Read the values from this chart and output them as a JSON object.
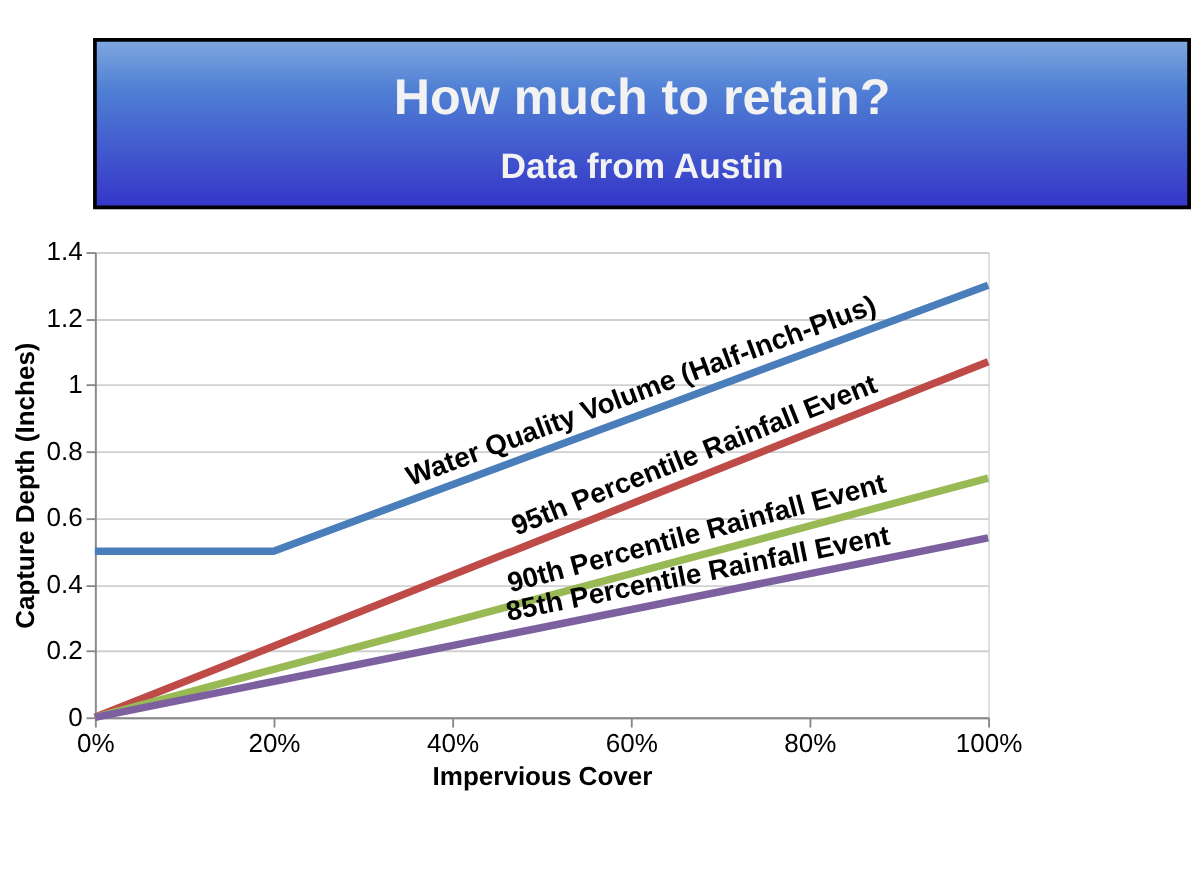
{
  "chart_data": {
    "type": "line",
    "title": "How much to retain?",
    "subtitle": "Data from Austin",
    "xlabel": "Impervious Cover",
    "ylabel": "Capture Depth (Inches)",
    "xlim": [
      0,
      100
    ],
    "xticks": [
      {
        "value": 0,
        "label": "0%"
      },
      {
        "value": 20,
        "label": "20%"
      },
      {
        "value": 40,
        "label": "40%"
      },
      {
        "value": 60,
        "label": "60%"
      },
      {
        "value": 80,
        "label": "80%"
      },
      {
        "value": 100,
        "label": "100%"
      }
    ],
    "ylim": [
      0,
      1.4
    ],
    "yticks": [
      0,
      0.2,
      0.4,
      0.6,
      0.8,
      1,
      1.2,
      1.4
    ],
    "grid": "y",
    "legend": false,
    "marker": "none",
    "line_style": "solid",
    "series": [
      {
        "name": "Water Quality Volume (Half-Inch-Plus)",
        "color": "#4a7ebb",
        "x": [
          0,
          20,
          100
        ],
        "values": [
          0.5,
          0.5,
          1.3
        ]
      },
      {
        "name": "95th Percentile Rainfall Event",
        "color": "#be4b48",
        "x": [
          0,
          100
        ],
        "values": [
          0,
          1.07
        ]
      },
      {
        "name": "90th Percentile Rainfall Event",
        "color": "#98b954",
        "x": [
          0,
          100
        ],
        "values": [
          0,
          0.72
        ]
      },
      {
        "name": "85th Percentile Rainfall Event",
        "color": "#7d60a0",
        "x": [
          0,
          100
        ],
        "values": [
          0,
          0.54
        ]
      }
    ]
  }
}
